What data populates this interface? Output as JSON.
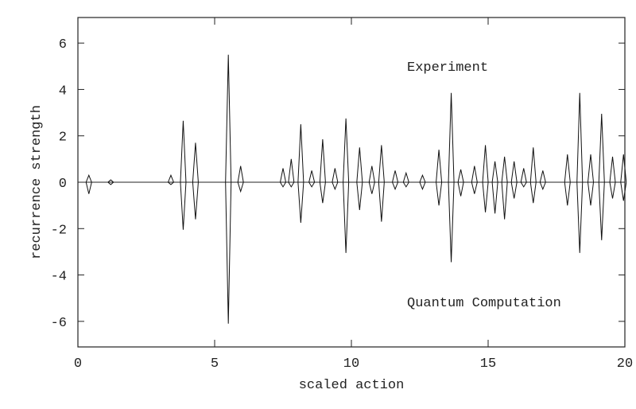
{
  "chart_data": {
    "type": "spike",
    "xlabel": "scaled action",
    "ylabel": "recurrence strength",
    "annotations": [
      "Experiment",
      "Quantum Computation"
    ],
    "xlim": [
      0,
      20
    ],
    "ylim": [
      -7,
      7
    ],
    "xticks": [
      0,
      5,
      10,
      15,
      20
    ],
    "yticks": [
      -6,
      -4,
      -2,
      0,
      2,
      4,
      6
    ],
    "x": [
      0.4,
      1.2,
      3.4,
      3.85,
      4.3,
      5.5,
      5.95,
      7.5,
      7.8,
      8.15,
      8.55,
      8.95,
      9.4,
      9.8,
      10.3,
      10.75,
      11.1,
      11.6,
      12.0,
      12.6,
      13.2,
      13.65,
      14.0,
      14.5,
      14.9,
      15.25,
      15.6,
      15.95,
      16.3,
      16.65,
      17.0,
      17.9,
      18.35,
      18.75,
      19.15,
      19.55,
      19.95
    ],
    "series": [
      {
        "color": "#111111",
        "values": [
          0.3,
          0.1,
          0.3,
          2.65,
          1.7,
          5.5,
          0.7,
          0.6,
          1.0,
          2.5,
          0.5,
          1.85,
          0.6,
          2.75,
          1.5,
          0.7,
          1.6,
          0.5,
          0.4,
          0.3,
          1.4,
          3.85,
          0.55,
          0.7,
          1.6,
          0.9,
          1.1,
          0.9,
          0.6,
          1.5,
          0.5,
          1.2,
          3.85,
          1.2,
          2.95,
          1.1,
          1.2
        ]
      },
      {
        "color": "#111111",
        "values": [
          -0.5,
          -0.1,
          -0.1,
          -2.05,
          -1.6,
          -6.1,
          -0.4,
          -0.2,
          -0.2,
          -1.75,
          -0.2,
          -0.9,
          -0.3,
          -3.05,
          -1.2,
          -0.5,
          -1.7,
          -0.3,
          -0.2,
          -0.3,
          -1.0,
          -3.45,
          -0.6,
          -0.5,
          -1.3,
          -1.35,
          -1.6,
          -0.7,
          -0.2,
          -0.9,
          -0.3,
          -1.0,
          -3.05,
          -1.0,
          -2.5,
          -0.7,
          -0.8
        ]
      }
    ]
  }
}
